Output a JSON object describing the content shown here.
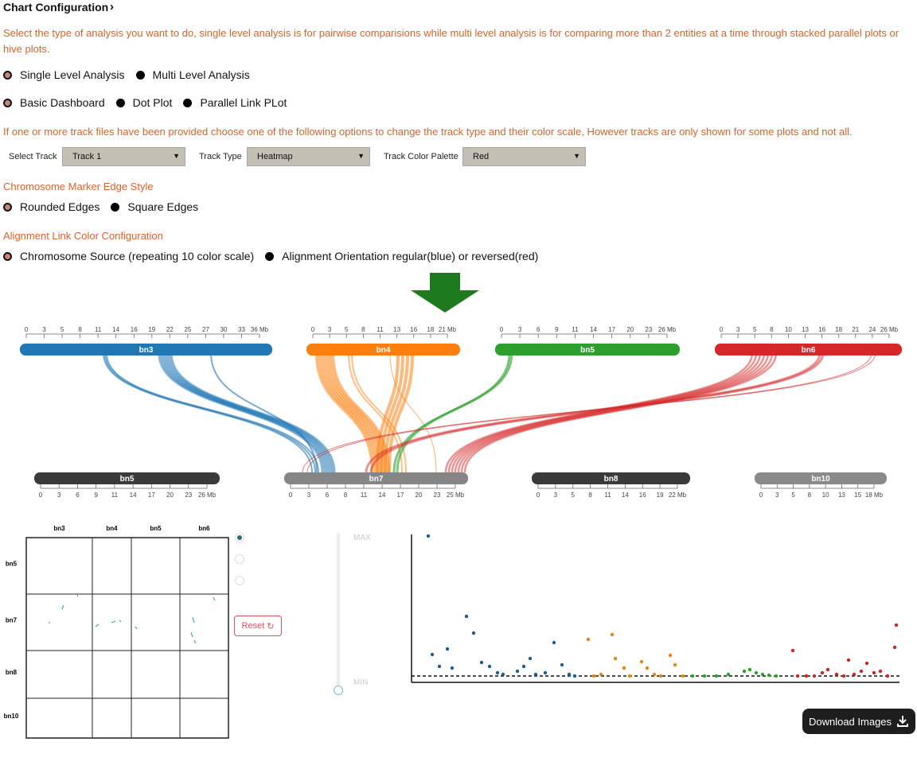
{
  "header": {
    "title": "Chart Configuration",
    "chevron": "›"
  },
  "description": "Select the type of analysis you want to do, single level analysis is for pairwise comparisions while multi level analysis is for comparing more than 2 entities at a time through stacked parallel plots or hive plots.",
  "analysis_options": [
    {
      "label": "Single Level Analysis",
      "selected": true
    },
    {
      "label": "Multi Level Analysis",
      "selected": false
    }
  ],
  "plot_options": [
    {
      "label": "Basic Dashboard",
      "selected": true
    },
    {
      "label": "Dot Plot",
      "selected": false
    },
    {
      "label": "Parallel Link PLot",
      "selected": false
    }
  ],
  "track_note": "If one or more track files have been provided choose one of the following options to change the track type and their color scale, However tracks are only shown for some plots and not all.",
  "track_controls": {
    "select_track_label": "Select Track",
    "select_track_value": "Track 1",
    "track_type_label": "Track Type",
    "track_type_value": "Heatmap",
    "palette_label": "Track Color Palette",
    "palette_value": "Red"
  },
  "marker_edge": {
    "heading": "Chromosome Marker Edge Style",
    "options": [
      {
        "label": "Rounded Edges",
        "selected": true
      },
      {
        "label": "Square Edges",
        "selected": false
      }
    ]
  },
  "link_color": {
    "heading": "Alignment Link Color Configuration",
    "options": [
      {
        "label": "Chromosome Source (repeating 10 color scale)",
        "selected": true
      },
      {
        "label": "Alignment Orientation regular(blue) or reversed(red)",
        "selected": false
      }
    ]
  },
  "colors": {
    "accent": "#d9622b",
    "bn3": "#1f77b4",
    "bn4": "#ff7f0e",
    "bn5": "#2ca02c",
    "bn6": "#d62728",
    "arrow": "#1e7a1e"
  },
  "top_chromosomes": [
    {
      "name": "bn3",
      "color": "#1f77b4",
      "ticks": [
        "0",
        "3",
        "5",
        "8",
        "11",
        "14",
        "16",
        "19",
        "22",
        "25",
        "27",
        "30",
        "33",
        "36 Mb"
      ]
    },
    {
      "name": "bn4",
      "color": "#ff7f0e",
      "ticks": [
        "0",
        "3",
        "5",
        "8",
        "11",
        "13",
        "16",
        "18",
        "21 Mb"
      ]
    },
    {
      "name": "bn5",
      "color": "#2ca02c",
      "ticks": [
        "0",
        "3",
        "6",
        "9",
        "11",
        "14",
        "17",
        "20",
        "23",
        "26 Mb"
      ]
    },
    {
      "name": "bn6",
      "color": "#d62728",
      "ticks": [
        "0",
        "3",
        "5",
        "8",
        "10",
        "13",
        "16",
        "18",
        "21",
        "24",
        "26 Mb"
      ]
    }
  ],
  "bottom_chromosomes": [
    {
      "name": "bn5",
      "color": "#3a3a3a",
      "ticks": [
        "0",
        "3",
        "6",
        "9",
        "11",
        "14",
        "17",
        "20",
        "23",
        "26 Mb"
      ]
    },
    {
      "name": "bn7",
      "color": "#858585",
      "ticks": [
        "0",
        "3",
        "6",
        "8",
        "11",
        "14",
        "17",
        "20",
        "23",
        "25 Mb"
      ]
    },
    {
      "name": "bn8",
      "color": "#3a3a3a",
      "ticks": [
        "0",
        "3",
        "5",
        "8",
        "11",
        "14",
        "16",
        "19",
        "22 Mb"
      ]
    },
    {
      "name": "bn10",
      "color": "#8a8a8a",
      "ticks": [
        "0",
        "3",
        "5",
        "8",
        "10",
        "13",
        "15",
        "18 Mb"
      ]
    }
  ],
  "dot_matrix": {
    "columns": [
      "bn3",
      "bn4",
      "bn5",
      "bn6"
    ],
    "rows": [
      "bn5",
      "bn7",
      "bn8",
      "bn10"
    ]
  },
  "slider": {
    "max_label": "MAX",
    "min_label": "MIN",
    "value": 0
  },
  "reset_label": "Reset",
  "download_label": "Download Images"
}
